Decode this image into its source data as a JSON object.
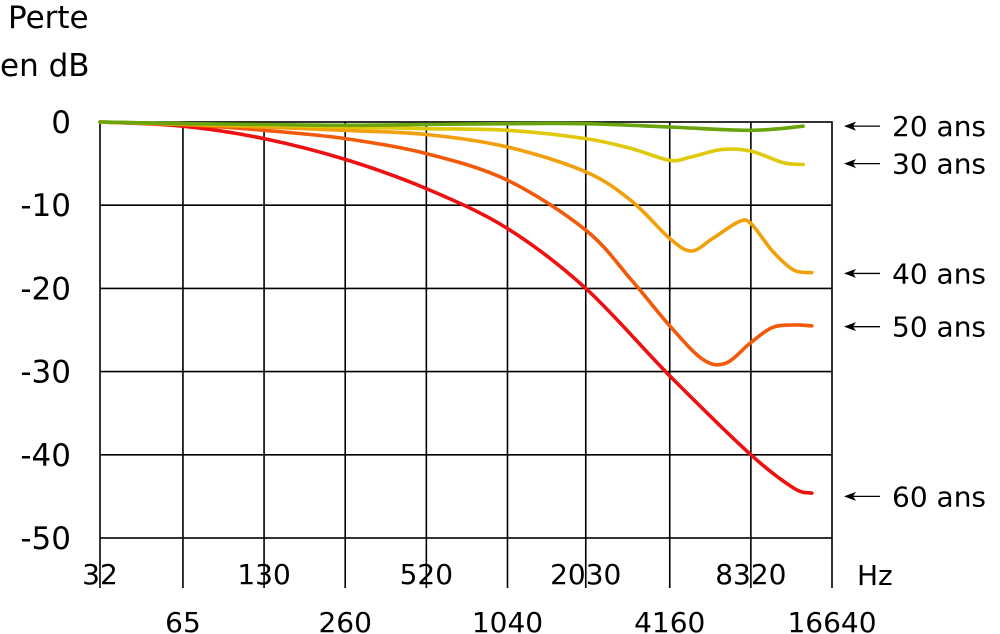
{
  "chart_data": {
    "type": "line",
    "ylabel_lines": [
      "Perte",
      "en dB"
    ],
    "xunit": "Hz",
    "y_ticks": [
      "0",
      "-10",
      "-20",
      "-30",
      "-40",
      "-50"
    ],
    "y_tick_values": [
      0,
      -10,
      -20,
      -30,
      -40,
      -50
    ],
    "ylim": [
      -50,
      0
    ],
    "x_ticks_row1": [
      "32",
      "130",
      "520",
      "2030",
      "8320"
    ],
    "x_ticks_row2": [
      "65",
      "260",
      "1040",
      "4160",
      "16640"
    ],
    "x_scale": "log2",
    "x_range_hz": [
      32,
      16640
    ],
    "grid": true,
    "colors": {
      "20 ans": "#6aa40c",
      "30 ans": "#e0c80a",
      "40 ans": "#f2a00a",
      "50 ans": "#f25a0a",
      "60 ans": "#ee1111"
    },
    "series": [
      {
        "name": "20 ans",
        "x": [
          32,
          65,
          130,
          260,
          520,
          1040,
          2030,
          4160,
          8320,
          13000
        ],
        "values": [
          0,
          -0.2,
          -0.3,
          -0.4,
          -0.3,
          -0.2,
          -0.2,
          -0.6,
          -1.0,
          -0.5
        ]
      },
      {
        "name": "30 ans",
        "x": [
          32,
          65,
          130,
          260,
          520,
          1040,
          2030,
          3000,
          4160,
          5000,
          6500,
          8320,
          11000,
          13000
        ],
        "values": [
          0,
          -0.2,
          -0.4,
          -0.6,
          -0.8,
          -1.0,
          -2.0,
          -3.2,
          -4.6,
          -4.2,
          -3.3,
          -3.5,
          -4.9,
          -5.1
        ]
      },
      {
        "name": "40 ans",
        "x": [
          32,
          65,
          130,
          260,
          520,
          1040,
          2030,
          3000,
          4160,
          5000,
          6000,
          7500,
          8320,
          10000,
          12000,
          14000
        ],
        "values": [
          0,
          -0.3,
          -0.6,
          -1.0,
          -1.5,
          -3.0,
          -6.0,
          -9.5,
          -14.0,
          -15.5,
          -14.0,
          -12.0,
          -12.2,
          -15.5,
          -17.8,
          -18.1
        ]
      },
      {
        "name": "50 ans",
        "x": [
          32,
          65,
          130,
          260,
          520,
          1040,
          2030,
          3000,
          4160,
          5500,
          6700,
          8320,
          10000,
          12000,
          14000
        ],
        "values": [
          0,
          -0.3,
          -1.0,
          -2.0,
          -3.8,
          -7.0,
          -13.0,
          -19.0,
          -24.5,
          -28.5,
          -29.0,
          -26.5,
          -24.7,
          -24.4,
          -24.5
        ]
      },
      {
        "name": "60 ans",
        "x": [
          32,
          65,
          130,
          260,
          520,
          1040,
          2030,
          4160,
          8320,
          12000,
          14000
        ],
        "values": [
          0,
          -0.5,
          -2.0,
          -4.5,
          -8.0,
          -12.8,
          -20.0,
          -30.5,
          -40.0,
          -44.0,
          -44.6
        ]
      }
    ],
    "annotations": [
      {
        "text": "20 ans",
        "series": "20 ans",
        "y": -0.5
      },
      {
        "text": "30 ans",
        "series": "30 ans",
        "y": -5
      },
      {
        "text": "40 ans",
        "series": "40 ans",
        "y": -18.2
      },
      {
        "text": "50 ans",
        "series": "50 ans",
        "y": -24.6
      },
      {
        "text": "60 ans",
        "series": "60 ans",
        "y": -45
      }
    ]
  }
}
